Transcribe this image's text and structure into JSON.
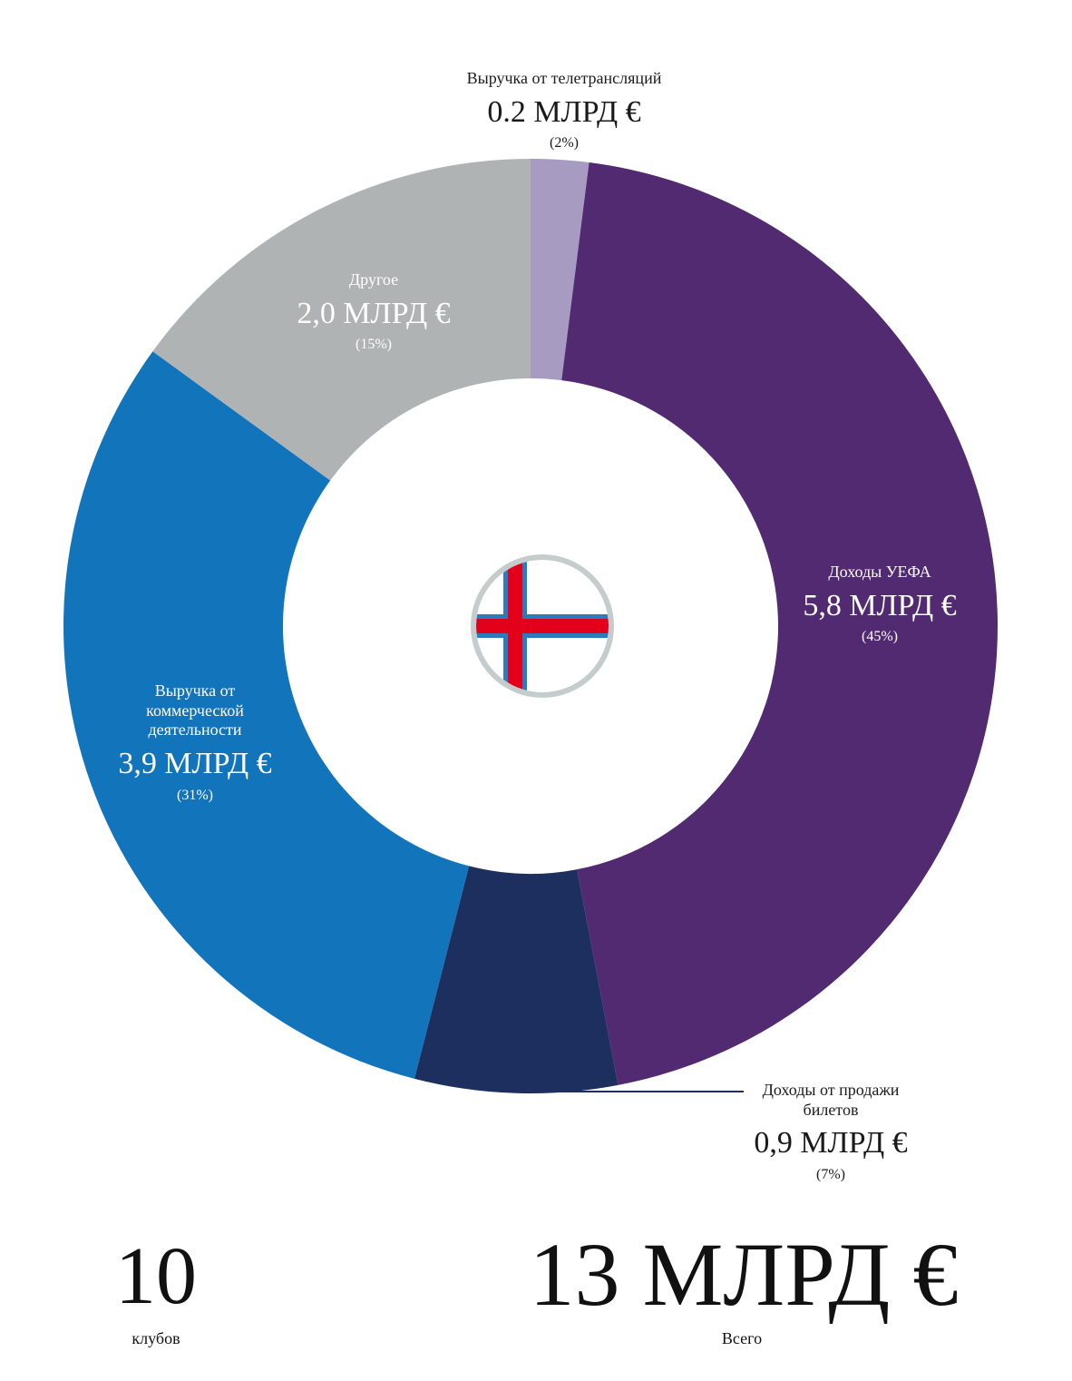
{
  "chart_data": {
    "type": "donut",
    "categories": [
      "Выручка от телетрансляций",
      "Доходы УЕФА",
      "Доходы от продажи билетов",
      "Выручка от коммерческой деятельности",
      "Другое"
    ],
    "values": [
      2,
      45,
      7,
      31,
      15
    ],
    "value_labels": [
      "(2%)",
      "(45%)",
      "(7%)",
      "(31%)",
      "(15%)"
    ],
    "amounts": [
      0.2,
      5.8,
      0.9,
      3.9,
      2.0
    ],
    "amount_labels": [
      "0.2 МЛРД €",
      "5,8 МЛРД €",
      "0,9 МЛРД €",
      "3,9 МЛРД €",
      "2,0 МЛРД €"
    ],
    "colors": [
      "#a89bc2",
      "#512a72",
      "#1d2f5f",
      "#1274bb",
      "#b0b3b4"
    ],
    "clubs": 10,
    "clubs_caption": "клубов",
    "total_label": "13 МЛРД €",
    "total_caption": "Всего"
  }
}
